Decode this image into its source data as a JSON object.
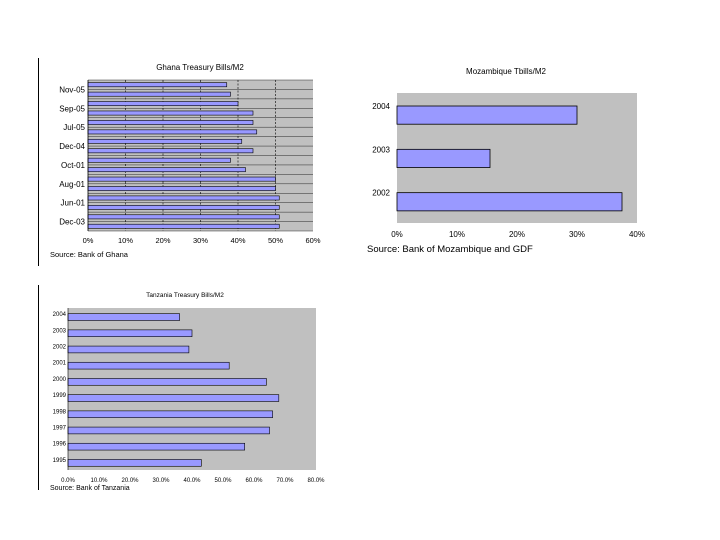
{
  "chart_data": [
    {
      "type": "bar",
      "orientation": "horizontal",
      "title": "Ghana Treasury Bills/M2",
      "source": "Source: Bank of Ghana",
      "xlim": [
        0,
        60
      ],
      "x_ticks": [
        "0%",
        "10%",
        "20%",
        "30%",
        "40%",
        "50%",
        "60%"
      ],
      "y_tick_labels": [
        "Nov-05",
        "Sep-05",
        "Jul-05",
        "Dec-04",
        "Oct-01",
        "Aug-01",
        "Jun-01",
        "Dec-03"
      ],
      "values": [
        37,
        38,
        40,
        44,
        44,
        45,
        41,
        44,
        38,
        42,
        50,
        50,
        51,
        51,
        51,
        51
      ],
      "colors": {
        "plot_bg": "#c0c0c0",
        "bar": "#9999ff",
        "grid": "#000000"
      }
    },
    {
      "type": "bar",
      "orientation": "horizontal",
      "title": "Mozambique Tbills/M2",
      "source": "Source: Bank of Mozambique and GDF",
      "xlim": [
        0,
        40
      ],
      "x_ticks": [
        "0%",
        "10%",
        "20%",
        "30%",
        "40%"
      ],
      "categories": [
        "2004",
        "2003",
        "2002"
      ],
      "values": [
        30,
        15.5,
        37.5
      ],
      "colors": {
        "plot_bg": "#c0c0c0",
        "bar": "#9999ff"
      }
    },
    {
      "type": "bar",
      "orientation": "horizontal",
      "title": "Tanzania Treasury Bills/M2",
      "source": "Source: Bank of Tanzania",
      "xlim": [
        0,
        80
      ],
      "x_ticks": [
        "0.0%",
        "10.0%",
        "20.0%",
        "30.0%",
        "40.0%",
        "50.0%",
        "60.0%",
        "70.0%",
        "80.0%"
      ],
      "categories": [
        "2004",
        "2003",
        "2002",
        "2001",
        "2000",
        "1999",
        "1998",
        "1997",
        "1996",
        "1995"
      ],
      "values": [
        36,
        40,
        39,
        52,
        64,
        68,
        66,
        65,
        57,
        43
      ],
      "colors": {
        "plot_bg": "#c0c0c0",
        "bar": "#9999ff"
      }
    }
  ]
}
